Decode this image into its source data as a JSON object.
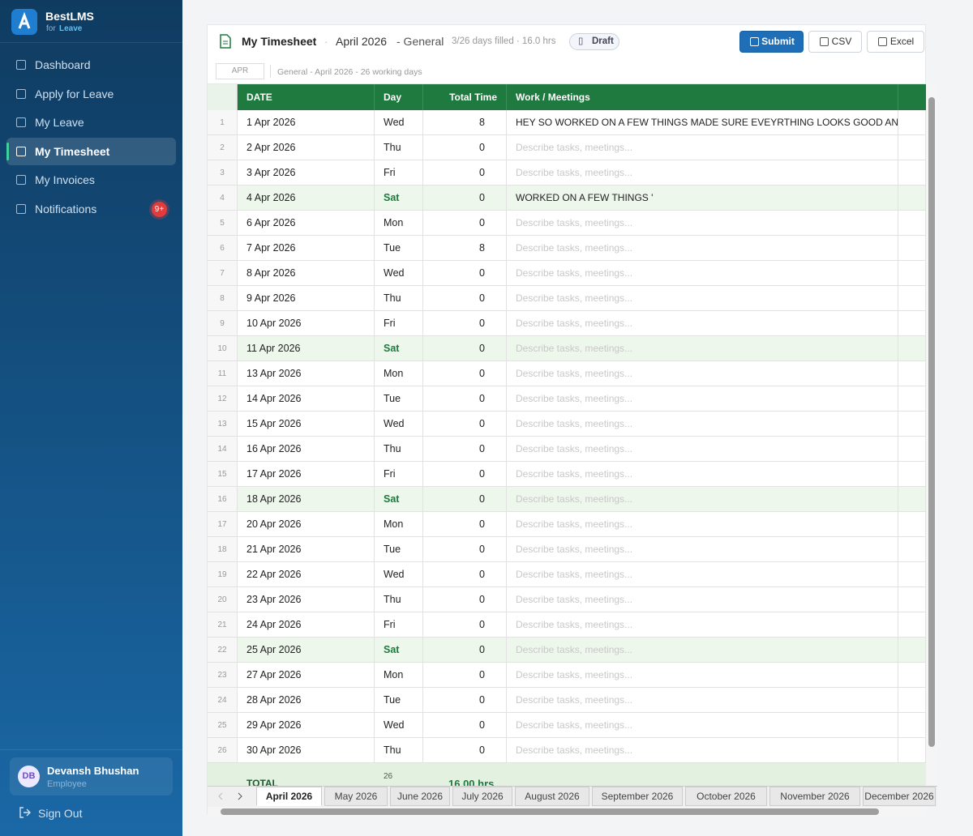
{
  "sidebar": {
    "brand": "BestLMS",
    "brand_prefix": "for",
    "brand_sub": "Leave",
    "nav": [
      {
        "label": "Dashboard"
      },
      {
        "label": "Apply for Leave"
      },
      {
        "label": "My Leave"
      },
      {
        "label": "My Timesheet",
        "active": true
      },
      {
        "label": "My Invoices"
      },
      {
        "label": "Notifications",
        "badge": "9+"
      }
    ],
    "user": {
      "initials": "DB",
      "name": "Devansh Bhushan",
      "role": "Employee"
    },
    "sign_out": "Sign Out"
  },
  "header": {
    "title": "My Timesheet",
    "month": "April 2026",
    "group": "- General",
    "meta": "3/26 days filled · 16.0 hrs",
    "status": "Draft",
    "buttons": [
      "Submit",
      "CSV",
      "Excel"
    ]
  },
  "subbar": {
    "cell": "APR",
    "info": "General - April 2026 - 26 working days"
  },
  "table": {
    "columns": [
      "DATE",
      "Day",
      "Total Time",
      "Work / Meetings"
    ],
    "placeholder": "Describe tasks, meetings...",
    "rows": [
      {
        "no": 1,
        "date": "1 Apr 2026",
        "day": "Wed",
        "hours": 8,
        "work": "HEY SO WORKED ON A FEW THINGS MADE SURE EVEYRTHING LOOKS GOOD AND"
      },
      {
        "no": 2,
        "date": "2 Apr 2026",
        "day": "Thu",
        "hours": 0
      },
      {
        "no": 3,
        "date": "3 Apr 2026",
        "day": "Fri",
        "hours": 0
      },
      {
        "no": 4,
        "date": "4 Apr 2026",
        "day": "Sat",
        "hours": 0,
        "weekend": true,
        "work": "WORKED ON A FEW THINGS '"
      },
      {
        "no": 5,
        "date": "6 Apr 2026",
        "day": "Mon",
        "hours": 0
      },
      {
        "no": 6,
        "date": "7 Apr 2026",
        "day": "Tue",
        "hours": 8
      },
      {
        "no": 7,
        "date": "8 Apr 2026",
        "day": "Wed",
        "hours": 0
      },
      {
        "no": 8,
        "date": "9 Apr 2026",
        "day": "Thu",
        "hours": 0
      },
      {
        "no": 9,
        "date": "10 Apr 2026",
        "day": "Fri",
        "hours": 0
      },
      {
        "no": 10,
        "date": "11 Apr 2026",
        "day": "Sat",
        "hours": 0,
        "weekend": true
      },
      {
        "no": 11,
        "date": "13 Apr 2026",
        "day": "Mon",
        "hours": 0
      },
      {
        "no": 12,
        "date": "14 Apr 2026",
        "day": "Tue",
        "hours": 0
      },
      {
        "no": 13,
        "date": "15 Apr 2026",
        "day": "Wed",
        "hours": 0
      },
      {
        "no": 14,
        "date": "16 Apr 2026",
        "day": "Thu",
        "hours": 0
      },
      {
        "no": 15,
        "date": "17 Apr 2026",
        "day": "Fri",
        "hours": 0
      },
      {
        "no": 16,
        "date": "18 Apr 2026",
        "day": "Sat",
        "hours": 0,
        "weekend": true
      },
      {
        "no": 17,
        "date": "20 Apr 2026",
        "day": "Mon",
        "hours": 0
      },
      {
        "no": 18,
        "date": "21 Apr 2026",
        "day": "Tue",
        "hours": 0
      },
      {
        "no": 19,
        "date": "22 Apr 2026",
        "day": "Wed",
        "hours": 0
      },
      {
        "no": 20,
        "date": "23 Apr 2026",
        "day": "Thu",
        "hours": 0
      },
      {
        "no": 21,
        "date": "24 Apr 2026",
        "day": "Fri",
        "hours": 0
      },
      {
        "no": 22,
        "date": "25 Apr 2026",
        "day": "Sat",
        "hours": 0,
        "weekend": true
      },
      {
        "no": 23,
        "date": "27 Apr 2026",
        "day": "Mon",
        "hours": 0
      },
      {
        "no": 24,
        "date": "28 Apr 2026",
        "day": "Tue",
        "hours": 0
      },
      {
        "no": 25,
        "date": "29 Apr 2026",
        "day": "Wed",
        "hours": 0
      },
      {
        "no": 26,
        "date": "30 Apr 2026",
        "day": "Thu",
        "hours": 0
      }
    ],
    "total": {
      "label": "TOTAL",
      "days": "26",
      "hours": "16.00 hrs"
    }
  },
  "tabs": [
    "April 2026",
    "May 2026",
    "June 2026",
    "July 2026",
    "August 2026",
    "September 2026",
    "October 2026",
    "November 2026",
    "December 2026"
  ]
}
